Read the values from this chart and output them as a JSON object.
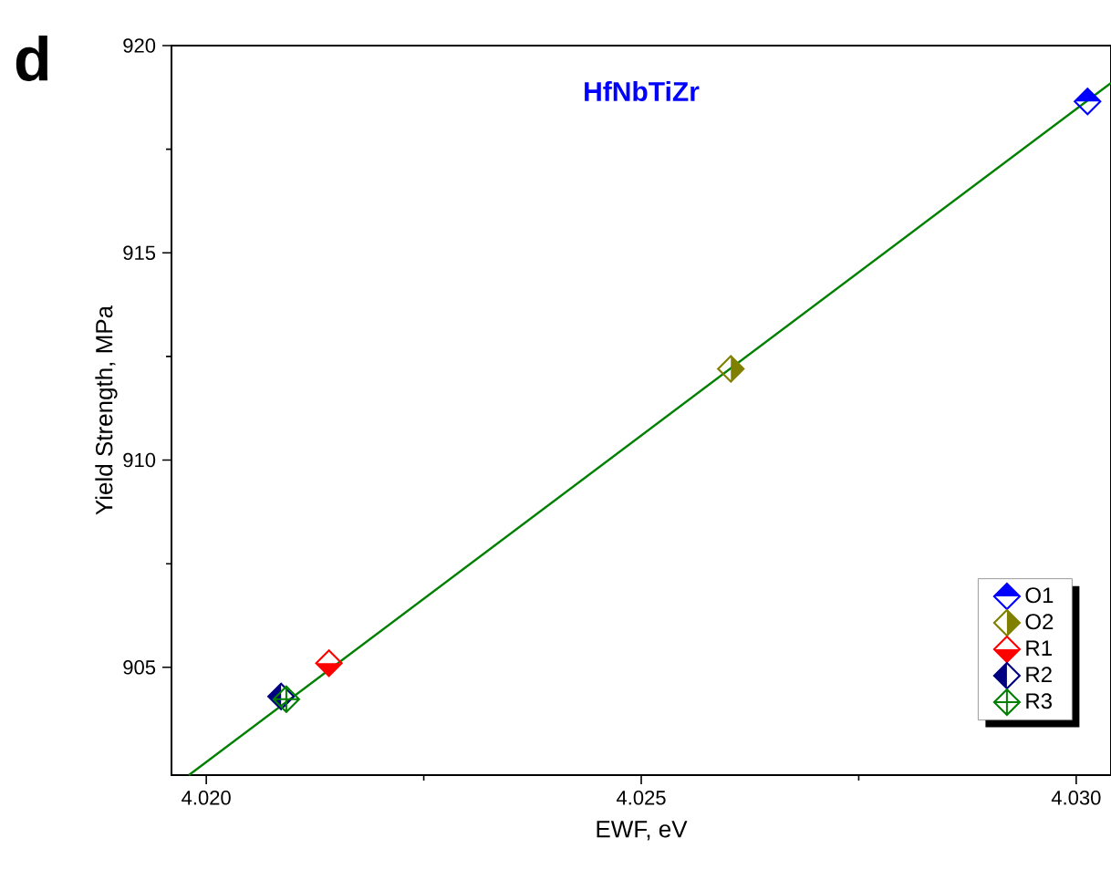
{
  "chart_data": {
    "type": "scatter",
    "title": "HfNbTiZr",
    "xlabel": "EWF, eV",
    "ylabel": "Yield Strength, MPa",
    "annotations": [
      "d"
    ],
    "xlim": [
      4.0196,
      4.0304
    ],
    "ylim": [
      902.4,
      920
    ],
    "xticks": [
      {
        "value": 4.02,
        "label": "4.020"
      },
      4.025,
      {
        "value": 4.03,
        "label": "4.030"
      }
    ],
    "yticks": [
      905,
      910,
      915,
      920
    ],
    "marker": "diamond",
    "legend": "bottom right",
    "grid": false,
    "series": [
      {
        "name": "O1",
        "color": "#0000ff",
        "x": [
          4.03013
        ],
        "values": [
          918.65
        ]
      },
      {
        "name": "O2",
        "color": "#808000",
        "x": [
          4.02603
        ],
        "values": [
          912.2
        ]
      },
      {
        "name": "R1",
        "color": "#ff0000",
        "x": [
          4.02141
        ],
        "values": [
          905.1
        ]
      },
      {
        "name": "R2",
        "color": "#000080",
        "x": [
          4.02086
        ],
        "values": [
          904.3
        ]
      },
      {
        "name": "R3",
        "color": "#008000",
        "x": [
          4.02092
        ],
        "values": [
          904.23
        ]
      },
      {
        "type": "line",
        "color": "#008000",
        "x": [
          4.0198,
          4.0304
        ],
        "values": [
          902.4,
          919.1
        ],
        "marker": "none"
      }
    ]
  }
}
